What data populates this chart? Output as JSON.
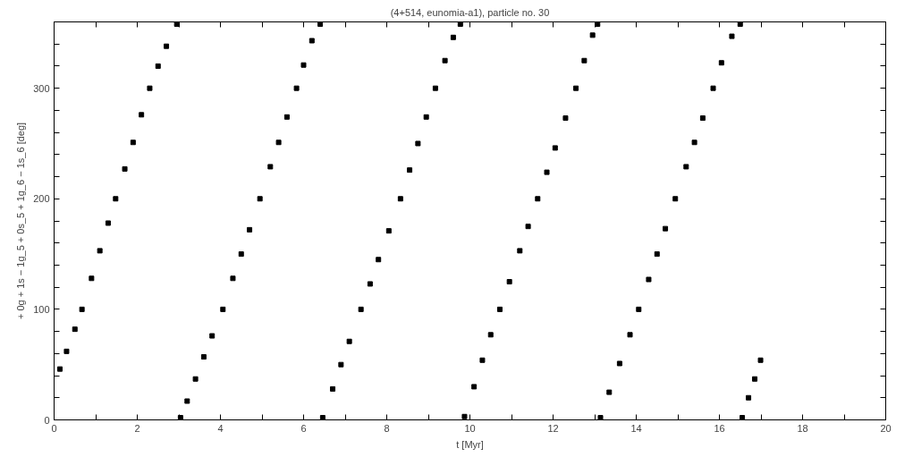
{
  "chart_data": {
    "type": "scatter",
    "title": "(4+514, eunomia-a1), particle no. 30",
    "xlabel": "t [Myr]",
    "ylabel": "+ 0g + 1s − 1g_5 + 0s_5 + 1g_6 − 1s_6 [deg]",
    "x": [
      0.14,
      0.3,
      0.5,
      0.67,
      0.9,
      1.1,
      1.3,
      1.48,
      1.7,
      1.9,
      2.1,
      2.3,
      2.5,
      2.7,
      2.95,
      3.04,
      3.2,
      3.4,
      3.6,
      3.8,
      4.06,
      4.3,
      4.5,
      4.7,
      4.95,
      5.2,
      5.4,
      5.6,
      5.83,
      6.0,
      6.2,
      6.4,
      6.46,
      6.7,
      6.9,
      7.1,
      7.38,
      7.6,
      7.8,
      8.05,
      8.33,
      8.55,
      8.75,
      8.95,
      9.17,
      9.4,
      9.6,
      9.77,
      9.87,
      10.1,
      10.3,
      10.5,
      10.72,
      10.95,
      11.2,
      11.4,
      11.63,
      11.85,
      12.05,
      12.3,
      12.55,
      12.75,
      12.95,
      13.07,
      13.14,
      13.35,
      13.6,
      13.85,
      14.06,
      14.3,
      14.5,
      14.7,
      14.94,
      15.2,
      15.4,
      15.6,
      15.85,
      16.05,
      16.3,
      16.5,
      16.55,
      16.7,
      16.85,
      16.99
    ],
    "series": [
      {
        "color": "#000000",
        "values": [
          46,
          62,
          82,
          100,
          128,
          153,
          178,
          200,
          227,
          251,
          276,
          300,
          320,
          338,
          358,
          2,
          17,
          37,
          57,
          76,
          100,
          128,
          150,
          172,
          200,
          229,
          251,
          274,
          300,
          321,
          343,
          358,
          2,
          28,
          50,
          71,
          100,
          123,
          145,
          171,
          200,
          226,
          250,
          274,
          300,
          325,
          346,
          358,
          3,
          30,
          54,
          77,
          100,
          125,
          153,
          175,
          200,
          224,
          246,
          273,
          300,
          325,
          348,
          358,
          2,
          25,
          51,
          77,
          100,
          127,
          150,
          173,
          200,
          229,
          251,
          273,
          300,
          323,
          347,
          358,
          2,
          20,
          37,
          54
        ]
      }
    ],
    "marker": "square",
    "grid": false,
    "xlim": [
      0,
      20
    ],
    "ylim": [
      0,
      360
    ],
    "xticks": [
      0,
      {
        "value": 1,
        "label": null
      },
      2,
      {
        "value": 3,
        "label": null
      },
      4,
      {
        "value": 5,
        "label": null
      },
      6,
      {
        "value": 7,
        "label": null
      },
      8,
      {
        "value": 9,
        "label": null
      },
      10,
      {
        "value": 11,
        "label": null
      },
      12,
      {
        "value": 13,
        "label": null
      },
      14,
      {
        "value": 15,
        "label": null
      },
      16,
      {
        "value": 17,
        "label": null
      },
      18,
      {
        "value": 19,
        "label": null
      },
      20
    ],
    "yticks": [
      0,
      {
        "value": 20,
        "label": null
      },
      {
        "value": 40,
        "label": null
      },
      {
        "value": 60,
        "label": null
      },
      {
        "value": 80,
        "label": null
      },
      100,
      {
        "value": 120,
        "label": null
      },
      {
        "value": 140,
        "label": null
      },
      {
        "value": 160,
        "label": null
      },
      {
        "value": 180,
        "label": null
      },
      200,
      {
        "value": 220,
        "label": null
      },
      {
        "value": 240,
        "label": null
      },
      {
        "value": 260,
        "label": null
      },
      {
        "value": 280,
        "label": null
      },
      300,
      {
        "value": 320,
        "label": null
      },
      {
        "value": 340,
        "label": null
      }
    ]
  }
}
